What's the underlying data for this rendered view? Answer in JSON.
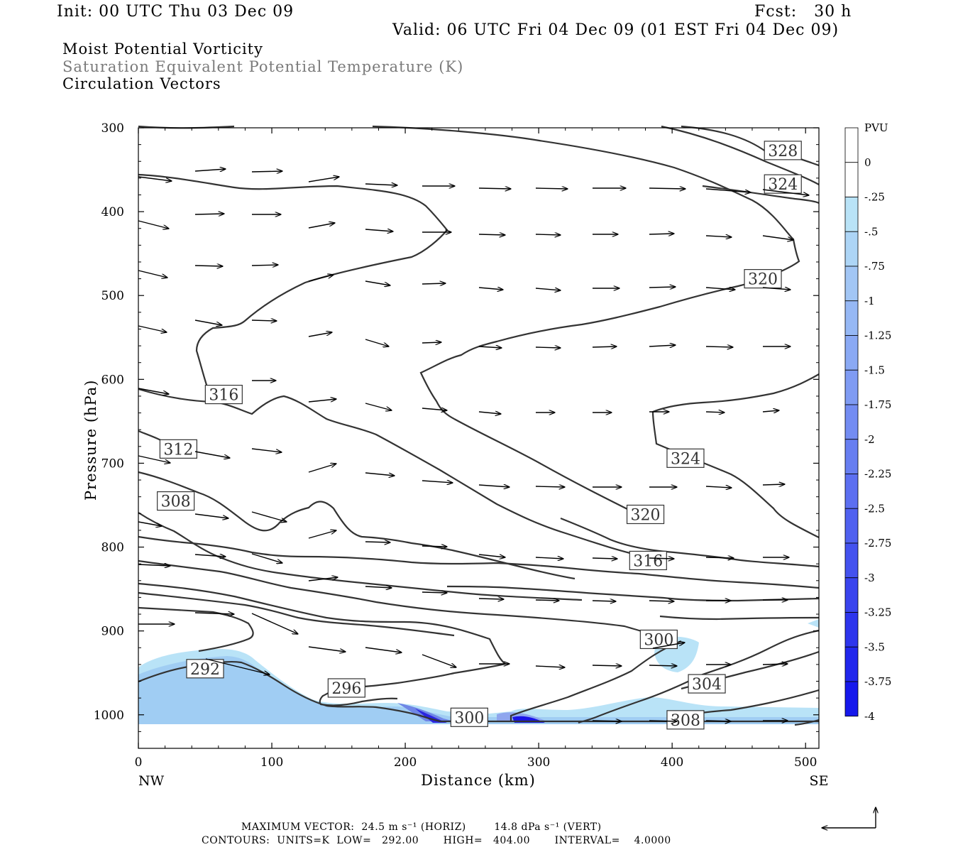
{
  "header": {
    "init": "Init: 00 UTC Thu 03 Dec 09",
    "fcst": "Fcst:   30 h",
    "valid": "Valid: 06 UTC Fri 04 Dec 09 (01 EST Fri 04 Dec 09)",
    "field1": "Moist Potential Vorticity",
    "field2": "Saturation Equivalent Potential Temperature (K)",
    "field3": "Circulation Vectors"
  },
  "footer": {
    "vector_line": "MAXIMUM VECTOR:  24.5 m s⁻¹ (HORIZ)        14.8 dPa s⁻¹ (VERT)",
    "contour_line": "CONTOURS:  UNITS=K  LOW=   292.00       HIGH=   404.00       INTERVAL=    4.0000"
  },
  "colors": {
    "contour": "#333333",
    "pv_light": "#b9e3f7",
    "pv_mid": "#8fa6ee",
    "pv_dark": "#1a14e8"
  },
  "chart_data": {
    "type": "contour-cross-section",
    "xlabel": "Distance (km)",
    "ylabel": "Pressure (hPa)",
    "x_end_labels": [
      "NW",
      "SE"
    ],
    "xlim": [
      0,
      510
    ],
    "ylim": [
      1040,
      300
    ],
    "x_ticks": [
      0,
      100,
      200,
      300,
      400,
      500
    ],
    "y_ticks": [
      300,
      400,
      500,
      600,
      700,
      800,
      900,
      1000
    ],
    "contour_labels": [
      {
        "value": "328",
        "x": 483,
        "p": 327
      },
      {
        "value": "324",
        "x": 483,
        "p": 367
      },
      {
        "value": "320",
        "x": 468,
        "p": 480
      },
      {
        "value": "316",
        "x": 64,
        "p": 618
      },
      {
        "value": "312",
        "x": 30,
        "p": 683
      },
      {
        "value": "324",
        "x": 410,
        "p": 694
      },
      {
        "value": "308",
        "x": 28,
        "p": 745
      },
      {
        "value": "320",
        "x": 380,
        "p": 761
      },
      {
        "value": "316",
        "x": 382,
        "p": 816
      },
      {
        "value": "300",
        "x": 390,
        "p": 910
      },
      {
        "value": "292",
        "x": 50,
        "p": 945
      },
      {
        "value": "304",
        "x": 426,
        "p": 963
      },
      {
        "value": "296",
        "x": 156,
        "p": 968
      },
      {
        "value": "300",
        "x": 248,
        "p": 1003
      },
      {
        "value": "308",
        "x": 410,
        "p": 1006
      }
    ],
    "colorbar": {
      "title": "PVU",
      "ticks": [
        "0",
        "-.25",
        "-.5",
        "-.75",
        "-1",
        "-1.25",
        "-1.5",
        "-1.75",
        "-2",
        "-2.25",
        "-2.5",
        "-2.75",
        "-3",
        "-3.25",
        "-3.5",
        "-3.75",
        "-4"
      ]
    }
  }
}
